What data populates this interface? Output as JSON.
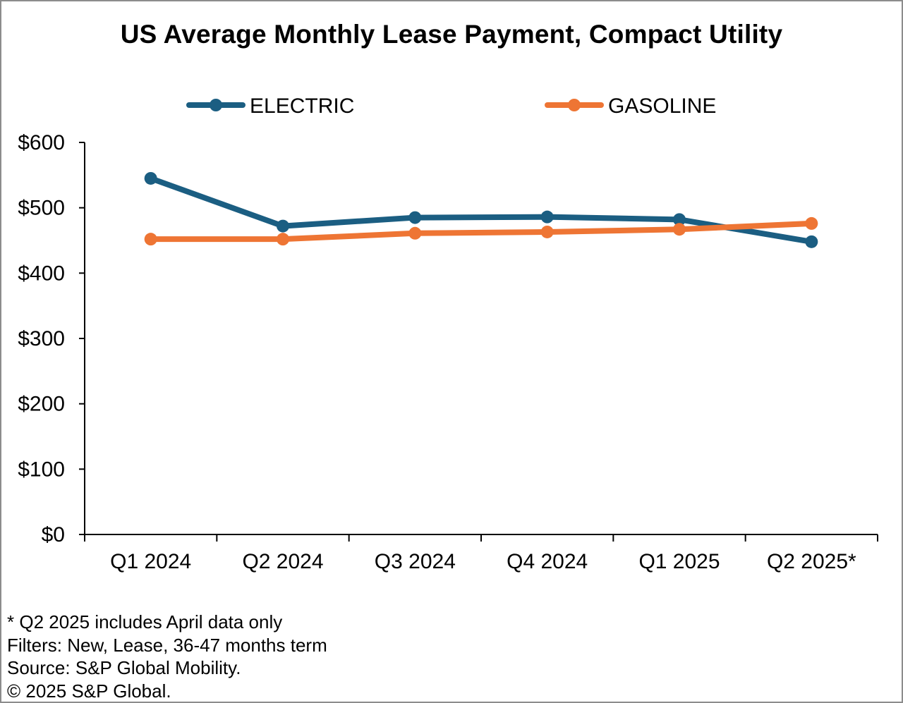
{
  "chart_data": {
    "type": "line",
    "title": "US Average Monthly Lease Payment, Compact Utility",
    "categories": [
      "Q1 2024",
      "Q2 2024",
      "Q3 2024",
      "Q4 2024",
      "Q1 2025",
      "Q2 2025*"
    ],
    "series": [
      {
        "name": "ELECTRIC",
        "color": "#1b5e82",
        "values": [
          545,
          472,
          485,
          486,
          482,
          448
        ]
      },
      {
        "name": "GASOLINE",
        "color": "#ee7534",
        "values": [
          452,
          452,
          461,
          463,
          467,
          476
        ]
      }
    ],
    "ylim": [
      0,
      600
    ],
    "yticks": [
      0,
      100,
      200,
      300,
      400,
      500,
      600
    ],
    "ytick_labels": [
      "$0",
      "$100",
      "$200",
      "$300",
      "$400",
      "$500",
      "$600"
    ],
    "xlabel": "",
    "ylabel": "",
    "grid": false,
    "legend_position": "top"
  },
  "footnotes": [
    "* Q2 2025 includes April data only",
    "Filters: New, Lease, 36-47 months term",
    "Source: S&P Global Mobility.",
    "© 2025 S&P Global."
  ]
}
